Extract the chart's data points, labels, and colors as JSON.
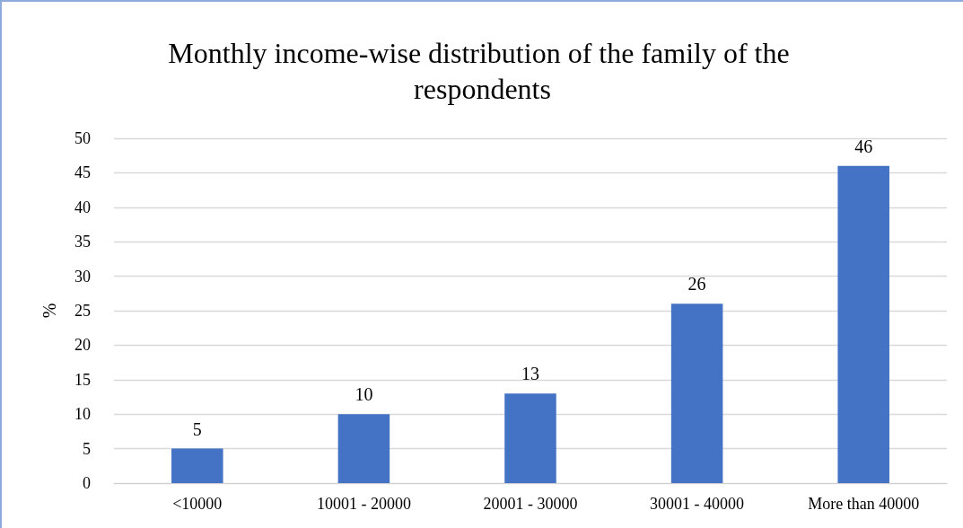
{
  "chart_data": {
    "type": "bar",
    "title": "Monthly income-wise distribution of the family of the respondents",
    "ylabel": "%",
    "categories": [
      "<10000",
      "10001 - 20000",
      "20001 - 30000",
      "30001 - 40000",
      "More than 40000"
    ],
    "values": [
      5,
      10,
      13,
      26,
      46
    ],
    "color": "#4472c4",
    "ylim": [
      0,
      50
    ],
    "yticks": [
      0,
      5,
      10,
      15,
      20,
      25,
      30,
      35,
      40,
      45,
      50
    ],
    "grid": "y",
    "data_labels": true
  }
}
